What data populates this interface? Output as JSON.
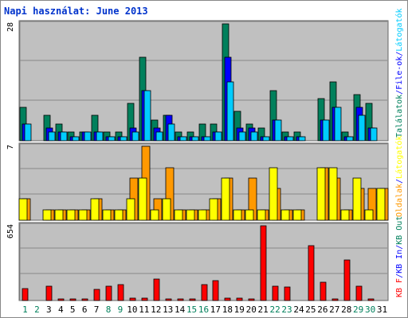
{
  "title": "Napi használat: June 2013",
  "colors": {
    "panel_bg": "#c0c0c0",
    "hits": "#00805c",
    "files": "#0000ff",
    "sites": "#00ccff",
    "pages": "#ff9900",
    "visits": "#ffff00",
    "kb_f": "#ff0000",
    "kb_in": "#0000ff",
    "kb_out": "#00805c",
    "weekend_day": "#00805c",
    "weekday_day": "#000000"
  },
  "chart_data": {
    "type": "bar",
    "x": [
      1,
      2,
      3,
      4,
      5,
      6,
      7,
      8,
      9,
      10,
      11,
      12,
      13,
      14,
      15,
      16,
      17,
      18,
      19,
      20,
      21,
      22,
      23,
      24,
      25,
      26,
      27,
      28,
      29,
      30,
      31
    ],
    "weekend_days": [
      1,
      2,
      8,
      9,
      15,
      16,
      22,
      23,
      29,
      30
    ],
    "panels": [
      {
        "ytick": "28",
        "ymax": 28,
        "legend": [
          {
            "label": "Találatok",
            "color": "#00805c"
          },
          {
            "label": "/",
            "color": "#0000ff"
          },
          {
            "label": "File-ok",
            "color": "#0000ff"
          },
          {
            "label": "/",
            "color": "#0000ff"
          },
          {
            "label": "Látogatók",
            "color": "#00ccff"
          }
        ],
        "series": [
          {
            "name": "Találatok",
            "color": "#00805c",
            "values": [
              8,
              0,
              6,
              4,
              2,
              2,
              6,
              2,
              2,
              9,
              20,
              5,
              6,
              2,
              2,
              4,
              4,
              28,
              7,
              4,
              3,
              12,
              2,
              2,
              0,
              10,
              14,
              2,
              11,
              9,
              0
            ]
          },
          {
            "name": "File-ok",
            "color": "#0000ff",
            "values": [
              4,
              0,
              3,
              2,
              1,
              2,
              2,
              1,
              1,
              3,
              12,
              3,
              6,
              1,
              1,
              1,
              2,
              20,
              3,
              3,
              1,
              5,
              1,
              1,
              0,
              5,
              8,
              1,
              8,
              3,
              0
            ]
          },
          {
            "name": "Látogatók",
            "color": "#00ccff",
            "values": [
              4,
              0,
              2,
              2,
              1,
              2,
              2,
              1,
              1,
              2,
              12,
              2,
              4,
              1,
              1,
              1,
              2,
              14,
              2,
              2,
              1,
              5,
              1,
              1,
              0,
              5,
              8,
              1,
              6,
              3,
              0
            ]
          }
        ]
      },
      {
        "ytick": "7",
        "ymax": 7,
        "legend": [
          {
            "label": "Oldalak",
            "color": "#ff9900"
          },
          {
            "label": "/",
            "color": "#0000ff"
          },
          {
            "label": "Látogatók",
            "color": "#ffff00"
          }
        ],
        "series": [
          {
            "name": "Oldalak",
            "color": "#ff9900",
            "values": [
              2,
              0,
              1,
              1,
              1,
              1,
              2,
              1,
              1,
              4,
              7,
              2,
              5,
              1,
              1,
              1,
              2,
              4,
              1,
              4,
              1,
              3,
              1,
              1,
              0,
              5,
              4,
              1,
              3,
              3,
              3
            ]
          },
          {
            "name": "Látogatók",
            "color": "#ffff00",
            "values": [
              2,
              0,
              1,
              1,
              1,
              1,
              2,
              1,
              1,
              2,
              4,
              1,
              2,
              1,
              1,
              1,
              2,
              4,
              1,
              1,
              1,
              5,
              1,
              1,
              0,
              5,
              5,
              1,
              4,
              1,
              3
            ]
          }
        ]
      },
      {
        "ytick": "654",
        "ymax": 654,
        "legend": [
          {
            "label": "KB F",
            "color": "#ff0000"
          },
          {
            "label": "/",
            "color": "#0000ff"
          },
          {
            "label": "KB In",
            "color": "#0000ff"
          },
          {
            "label": "/",
            "color": "#0000ff"
          },
          {
            "label": "KB Out",
            "color": "#00805c"
          }
        ],
        "series": [
          {
            "name": "KB F",
            "color": "#ff0000",
            "values": [
              105,
              0,
              125,
              12,
              12,
              12,
              95,
              125,
              140,
              20,
              18,
              185,
              12,
              12,
              12,
              140,
              175,
              20,
              20,
              12,
              654,
              125,
              120,
              0,
              480,
              158,
              12,
              355,
              125,
              12,
              0
            ]
          }
        ]
      }
    ]
  }
}
